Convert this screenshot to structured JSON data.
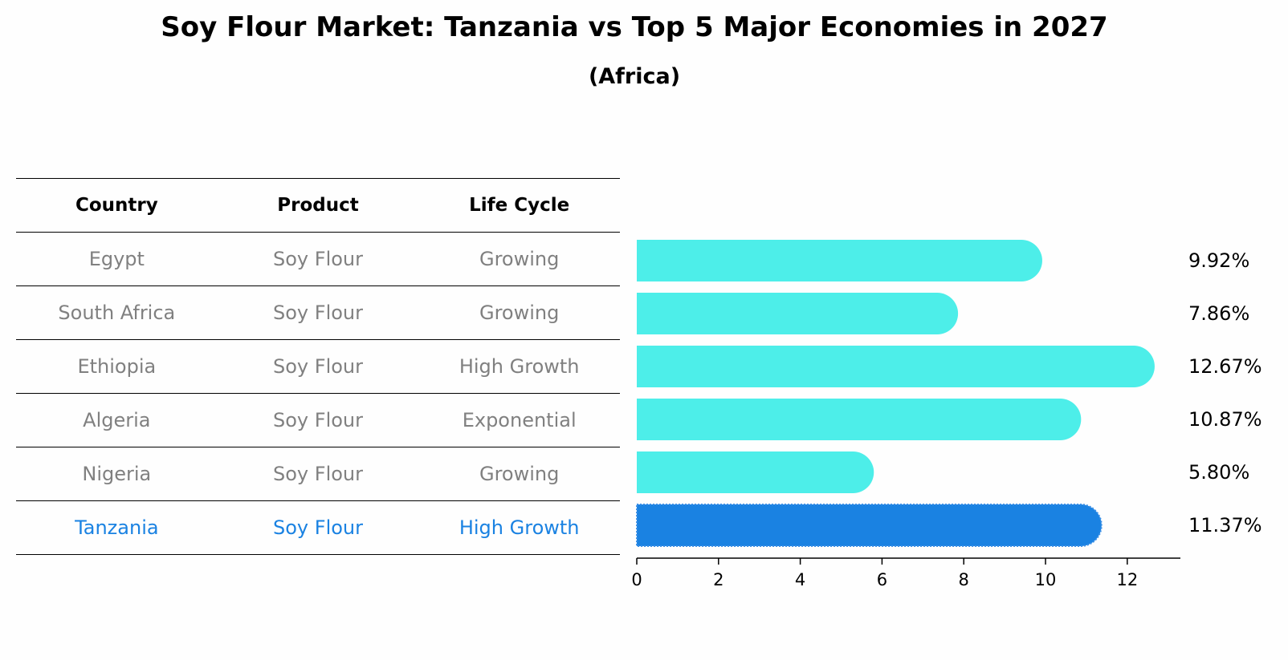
{
  "title": "Soy Flour Market: Tanzania vs Top 5 Major Economies in 2027",
  "subtitle": "(Africa)",
  "table": {
    "headers": [
      "Country",
      "Product",
      "Life Cycle"
    ],
    "rows": [
      [
        "Egypt",
        "Soy Flour",
        "Growing"
      ],
      [
        "South Africa",
        "Soy Flour",
        "Growing"
      ],
      [
        "Ethiopia",
        "Soy Flour",
        "High Growth"
      ],
      [
        "Algeria",
        "Soy Flour",
        "Exponential"
      ],
      [
        "Nigeria",
        "Soy Flour",
        "Growing"
      ],
      [
        "Tanzania",
        "Soy Flour",
        "High Growth"
      ]
    ],
    "highlight_row": "Tanzania"
  },
  "colors": {
    "bar": "#4deee9",
    "highlight": "#1a82e2",
    "muted_text": "#808080"
  },
  "chart_data": {
    "type": "bar",
    "orientation": "horizontal",
    "categories": [
      "Egypt",
      "South Africa",
      "Ethiopia",
      "Algeria",
      "Nigeria",
      "Tanzania"
    ],
    "values": [
      9.92,
      7.86,
      12.67,
      10.87,
      5.8,
      11.37
    ],
    "value_labels": [
      "9.92%",
      "7.86%",
      "12.67%",
      "10.87%",
      "5.80%",
      "11.37%"
    ],
    "x_ticks": [
      0,
      2,
      4,
      6,
      8,
      10,
      12
    ],
    "xlim": [
      0,
      13.3
    ],
    "highlight": "Tanzania",
    "grid": false
  }
}
